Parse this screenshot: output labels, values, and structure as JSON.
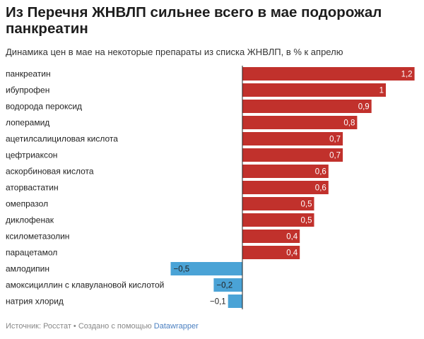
{
  "header": {
    "title": "Из Перечня ЖНВЛП сильнее всего в мае подорожал панкреатин",
    "subtitle": "Динамика цен в мае на некоторые препараты из списка ЖНВЛП, в % к апрелю"
  },
  "footer": {
    "source": "Источник: Росстат • Создано с помощью ",
    "tool": "Datawrapper"
  },
  "colors": {
    "positive": "#c1312c",
    "negative": "#4aa3d6",
    "axis": "#222222",
    "label_inside": "#ffffff",
    "label_outside": "#222222"
  },
  "chart_data": {
    "type": "bar",
    "orientation": "horizontal",
    "categories": [
      "панкреатин",
      "ибупрофен",
      "водорода пероксид",
      "лоперамид",
      "ацетилсалициловая кислота",
      "цефтриаксон",
      "аскорбиновая кислота",
      "аторвастатин",
      "омепразол",
      "диклофенак",
      "ксилометазолин",
      "парацетамол",
      "амлодипин",
      "амоксициллин с клавулановой кислотой",
      "натрия хлорид"
    ],
    "values": [
      1.2,
      1,
      0.9,
      0.8,
      0.7,
      0.7,
      0.6,
      0.6,
      0.5,
      0.5,
      0.4,
      0.4,
      -0.5,
      -0.2,
      -0.1
    ],
    "value_labels": [
      "1,2",
      "1",
      "0,9",
      "0,8",
      "0,7",
      "0,7",
      "0,6",
      "0,6",
      "0,5",
      "0,5",
      "0,4",
      "0,4",
      "−0,5",
      "−0,2",
      "−0,1"
    ],
    "xlim": [
      -0.5,
      1.2
    ]
  }
}
